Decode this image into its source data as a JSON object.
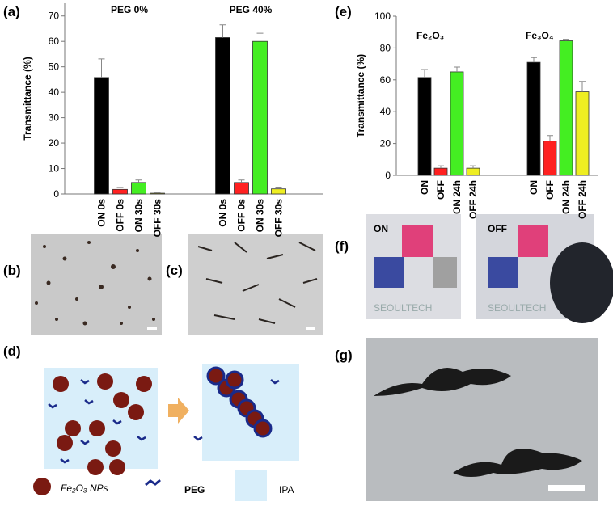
{
  "chart_data": [
    {
      "type": "bar",
      "panel": "(a)",
      "y_label": "Transmittance (%)",
      "categories": [
        "PEG 0%",
        "PEG 40%"
      ],
      "series": [
        {
          "name": "ON 0s",
          "color": "#000000",
          "values": [
            45.8,
            61.5
          ],
          "errors": [
            7.3,
            5
          ]
        },
        {
          "name": "OFF 0s",
          "color": "#ff2020",
          "values": [
            1.8,
            4.5
          ],
          "errors": [
            0.8,
            1
          ]
        },
        {
          "name": "ON 30s",
          "color": "#44ee22",
          "values": [
            4.5,
            60
          ],
          "errors": [
            1,
            3.2
          ]
        },
        {
          "name": "OFF 30s",
          "color": "#eeee22",
          "values": [
            0.3,
            2
          ],
          "errors": [
            0.2,
            0.7
          ]
        }
      ],
      "ylim": [
        0,
        75
      ],
      "yticks": [
        0,
        10,
        20,
        30,
        40,
        50,
        60,
        70
      ]
    },
    {
      "type": "bar",
      "panel": "(e)",
      "y_label": "Transmittance (%)",
      "categories": [
        "Fe₂O₃",
        "Fe₃O₄"
      ],
      "series": [
        {
          "name": "ON",
          "color": "#000000",
          "values": [
            61.5,
            71
          ],
          "errors": [
            5,
            3
          ]
        },
        {
          "name": "OFF",
          "color": "#ff2020",
          "values": [
            4.5,
            21.5
          ],
          "errors": [
            1.5,
            3.5
          ]
        },
        {
          "name": "ON 24h",
          "color": "#44ee22",
          "values": [
            65,
            84.5
          ],
          "errors": [
            3,
            1
          ]
        },
        {
          "name": "OFF 24h",
          "color": "#eeee22",
          "values": [
            4.5,
            52.5
          ],
          "errors": [
            1.5,
            6.5
          ]
        }
      ],
      "ylim": [
        0,
        100
      ],
      "yticks": [
        0,
        20,
        40,
        60,
        80,
        100
      ]
    }
  ],
  "panels": {
    "b": "(b)",
    "c": "(c)",
    "d": "(d)",
    "f": "(f)",
    "g": "(g)",
    "d_legend": {
      "nps": "Fe₂O₃ NPs",
      "peg": "PEG",
      "ipa": "IPA"
    },
    "f_labels": {
      "on": "ON",
      "off": "OFF",
      "logo": "SEOULTECH"
    }
  }
}
